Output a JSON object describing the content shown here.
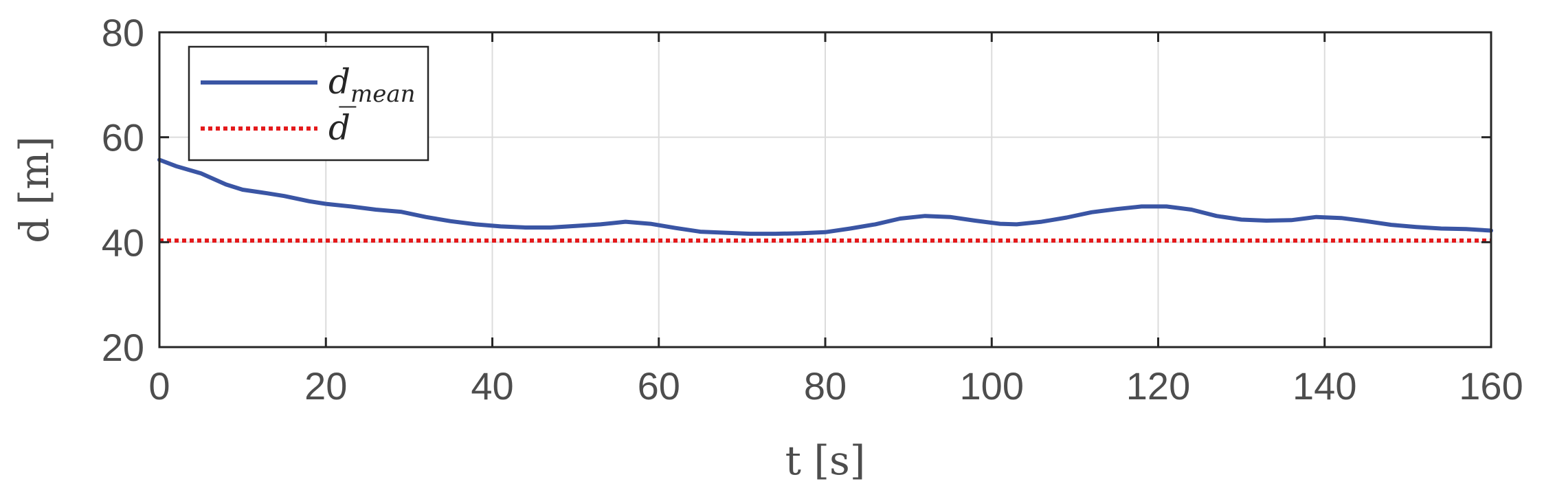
{
  "chart_data": {
    "type": "line",
    "xlabel": "t [s]",
    "ylabel": "d [m]",
    "xlim": [
      0,
      160
    ],
    "ylim": [
      20,
      80
    ],
    "xticks": [
      0,
      20,
      40,
      60,
      80,
      100,
      120,
      140,
      160
    ],
    "yticks": [
      20,
      40,
      60,
      80
    ],
    "grid": true,
    "legend": {
      "placement": "top-left",
      "entries": [
        {
          "main": "d",
          "sub": "mean"
        },
        {
          "main": "d̅",
          "sub": ""
        }
      ]
    },
    "series": [
      {
        "name": "d_mean",
        "color": "#3a55a4",
        "style": "solid",
        "x": [
          0,
          2,
          5,
          8,
          10,
          13,
          15,
          18,
          20,
          23,
          26,
          29,
          32,
          35,
          38,
          41,
          44,
          47,
          50,
          53,
          56,
          59,
          62,
          65,
          68,
          71,
          74,
          77,
          80,
          83,
          86,
          89,
          92,
          95,
          98,
          101,
          103,
          106,
          109,
          112,
          115,
          118,
          121,
          124,
          127,
          130,
          133,
          136,
          139,
          142,
          145,
          148,
          151,
          154,
          157,
          160
        ],
        "y": [
          55.7,
          54.5,
          53.1,
          51.0,
          50.0,
          49.3,
          48.8,
          47.8,
          47.3,
          46.8,
          46.2,
          45.8,
          44.8,
          44.0,
          43.4,
          43.0,
          42.8,
          42.8,
          43.1,
          43.4,
          43.9,
          43.5,
          42.7,
          42.0,
          41.8,
          41.6,
          41.6,
          41.7,
          41.9,
          42.6,
          43.4,
          44.5,
          45.0,
          44.8,
          44.1,
          43.5,
          43.4,
          43.9,
          44.7,
          45.7,
          46.3,
          46.8,
          46.8,
          46.2,
          45.0,
          44.3,
          44.1,
          44.2,
          44.8,
          44.6,
          44.0,
          43.3,
          42.9,
          42.6,
          42.5,
          42.2
        ]
      },
      {
        "name": "d̅",
        "color": "#e41a1c",
        "style": "dotted",
        "x": [
          0,
          160
        ],
        "y": [
          40.3,
          40.3
        ]
      }
    ]
  }
}
